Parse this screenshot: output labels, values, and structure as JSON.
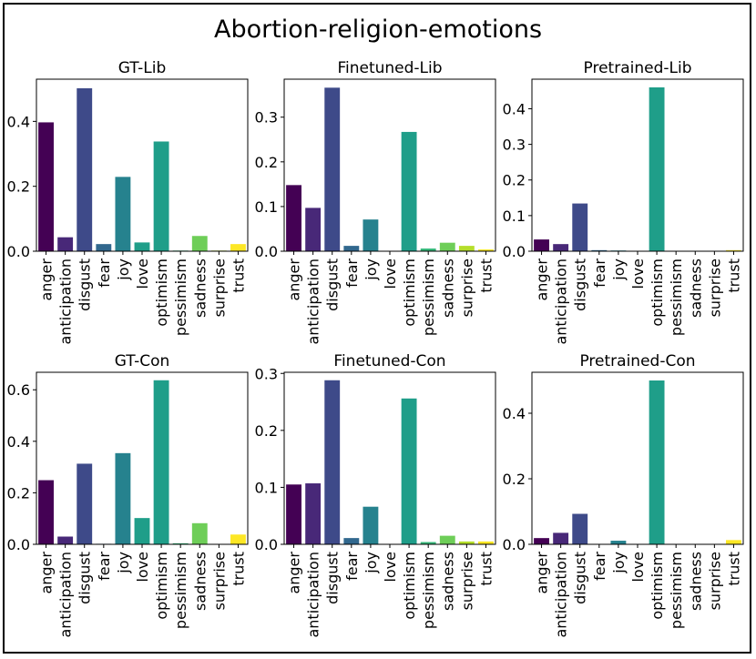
{
  "figure": {
    "title": "Abortion-religion-emotions"
  },
  "palette": [
    "#440154",
    "#482878",
    "#3e4a89",
    "#31688e",
    "#26828e",
    "#1f9e89",
    "#35b779",
    "#6ece58",
    "#b5de2b",
    "#fde725"
  ],
  "categories": [
    "anger",
    "anticipation",
    "disgust",
    "fear",
    "joy",
    "love",
    "optimism",
    "pessimism",
    "sadness",
    "surprise",
    "trust"
  ],
  "chart_data": [
    {
      "type": "bar",
      "title": "GT-Lib",
      "categories": [
        "anger",
        "anticipation",
        "disgust",
        "fear",
        "joy",
        "love",
        "optimism",
        "pessimism",
        "sadness",
        "surprise",
        "trust"
      ],
      "values": [
        0.397,
        0.043,
        0.502,
        0.022,
        0.229,
        0.027,
        0.338,
        0.002,
        0.047,
        0.002,
        0.022
      ],
      "ylim": [
        0,
        0.53
      ],
      "yticks": [
        0.0,
        0.2,
        0.4
      ],
      "ytick_labels": [
        "0.0",
        "0.2",
        "0.4"
      ],
      "xlabel": "",
      "ylabel": ""
    },
    {
      "type": "bar",
      "title": "Finetuned-Lib",
      "categories": [
        "anger",
        "anticipation",
        "disgust",
        "fear",
        "joy",
        "love",
        "optimism",
        "pessimism",
        "sadness",
        "surprise",
        "trust"
      ],
      "values": [
        0.148,
        0.097,
        0.366,
        0.012,
        0.071,
        0.0,
        0.267,
        0.006,
        0.019,
        0.012,
        0.004
      ],
      "ylim": [
        0,
        0.385
      ],
      "yticks": [
        0.0,
        0.1,
        0.2,
        0.3
      ],
      "ytick_labels": [
        "0.0",
        "0.1",
        "0.2",
        "0.3"
      ],
      "xlabel": "",
      "ylabel": ""
    },
    {
      "type": "bar",
      "title": "Pretrained-Lib",
      "categories": [
        "anger",
        "anticipation",
        "disgust",
        "fear",
        "joy",
        "love",
        "optimism",
        "pessimism",
        "sadness",
        "surprise",
        "trust"
      ],
      "values": [
        0.033,
        0.02,
        0.134,
        0.003,
        0.002,
        0.001,
        0.46,
        0.0,
        0.001,
        0.0,
        0.003
      ],
      "ylim": [
        0,
        0.483
      ],
      "yticks": [
        0.0,
        0.1,
        0.2,
        0.3,
        0.4
      ],
      "ytick_labels": [
        "0.0",
        "0.1",
        "0.2",
        "0.3",
        "0.4"
      ],
      "xlabel": "",
      "ylabel": ""
    },
    {
      "type": "bar",
      "title": "GT-Con",
      "categories": [
        "anger",
        "anticipation",
        "disgust",
        "fear",
        "joy",
        "love",
        "optimism",
        "pessimism",
        "sadness",
        "surprise",
        "trust"
      ],
      "values": [
        0.249,
        0.03,
        0.313,
        0.002,
        0.354,
        0.102,
        0.637,
        0.004,
        0.082,
        0.0,
        0.038
      ],
      "ylim": [
        0,
        0.668
      ],
      "yticks": [
        0.0,
        0.2,
        0.4,
        0.6
      ],
      "ytick_labels": [
        "0.0",
        "0.2",
        "0.4",
        "0.6"
      ],
      "xlabel": "",
      "ylabel": ""
    },
    {
      "type": "bar",
      "title": "Finetuned-Con",
      "categories": [
        "anger",
        "anticipation",
        "disgust",
        "fear",
        "joy",
        "love",
        "optimism",
        "pessimism",
        "sadness",
        "surprise",
        "trust"
      ],
      "values": [
        0.105,
        0.107,
        0.288,
        0.011,
        0.066,
        0.0,
        0.256,
        0.004,
        0.015,
        0.005,
        0.005
      ],
      "ylim": [
        0,
        0.302
      ],
      "yticks": [
        0.0,
        0.1,
        0.2,
        0.3
      ],
      "ytick_labels": [
        "0.0",
        "0.1",
        "0.2",
        "0.3"
      ],
      "xlabel": "",
      "ylabel": ""
    },
    {
      "type": "bar",
      "title": "Pretrained-Con",
      "categories": [
        "anger",
        "anticipation",
        "disgust",
        "fear",
        "joy",
        "love",
        "optimism",
        "pessimism",
        "sadness",
        "surprise",
        "trust"
      ],
      "values": [
        0.019,
        0.035,
        0.093,
        0.001,
        0.011,
        0.0,
        0.5,
        0.0,
        0.0,
        0.0,
        0.013
      ],
      "ylim": [
        0,
        0.525
      ],
      "yticks": [
        0.0,
        0.2,
        0.4
      ],
      "ytick_labels": [
        "0.0",
        "0.2",
        "0.4"
      ],
      "xlabel": "",
      "ylabel": ""
    }
  ]
}
